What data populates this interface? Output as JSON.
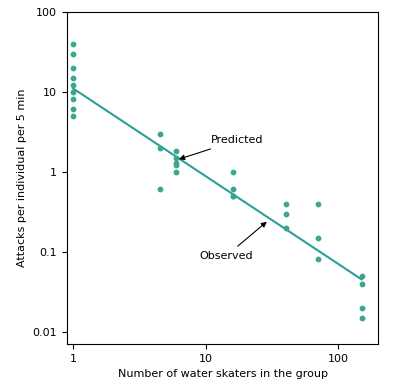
{
  "chart_data": {
    "type": "scatter",
    "x_label": "Number of water skaters in the group",
    "y_label": "Attacks per individual per 5 min",
    "log": true,
    "grid": false,
    "xlim": [
      0.9,
      200
    ],
    "ylim": [
      0.007,
      100
    ],
    "xticks": [
      1,
      10,
      100
    ],
    "yticks": [
      0.01,
      0.1,
      1,
      10,
      100
    ],
    "series": [
      {
        "type": "scatter",
        "color": "#3aa68f",
        "marker": "o",
        "x": [
          1,
          1,
          1,
          1,
          1,
          1,
          1,
          1,
          1,
          4.5,
          4.5,
          4.5,
          6,
          6,
          6,
          6,
          6,
          16,
          16,
          16,
          16,
          40,
          40,
          40,
          70,
          70,
          70,
          150,
          150,
          150,
          150
        ],
        "values": [
          40,
          30,
          20,
          15,
          12,
          10,
          8,
          6,
          5,
          3,
          2,
          0.6,
          1.8,
          1.5,
          1.3,
          1.2,
          1.0,
          1.0,
          0.6,
          0.5,
          0.5,
          0.4,
          0.3,
          0.2,
          0.4,
          0.15,
          0.08,
          0.05,
          0.04,
          0.02,
          0.015
        ]
      },
      {
        "type": "line",
        "color": "#2e9e9a",
        "line_style": "solid",
        "x": [
          1,
          150
        ],
        "values": [
          11,
          0.045
        ]
      }
    ],
    "annotations": [
      {
        "text": "Predicted",
        "x": 6,
        "y": 1.4
      },
      {
        "text": "Observed",
        "x": 30,
        "y": 0.25
      }
    ]
  }
}
